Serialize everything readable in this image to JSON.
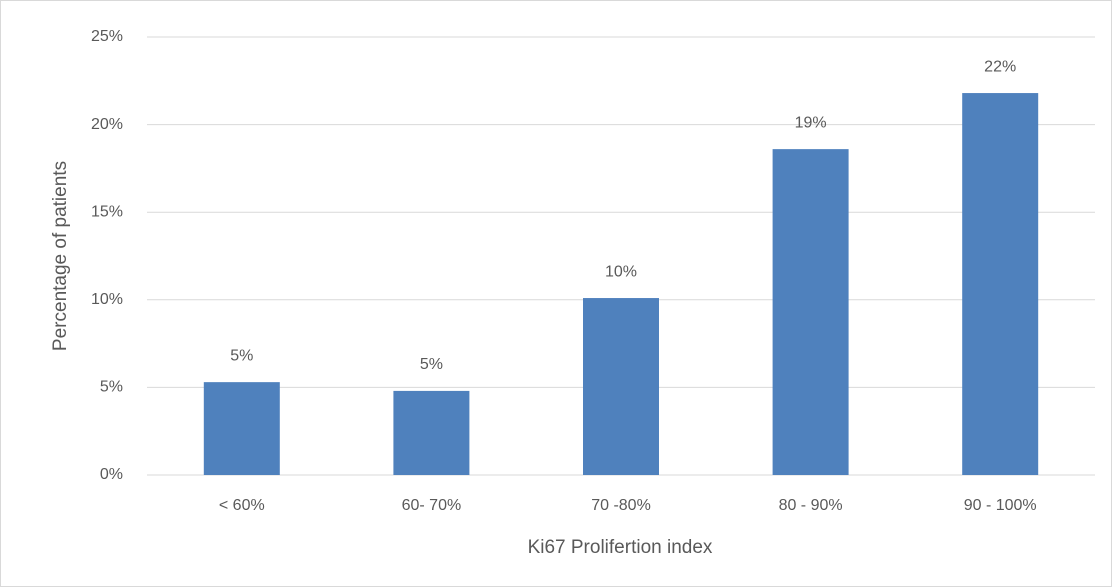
{
  "chart_data": {
    "type": "bar",
    "x_label": "Ki67 Prolifertion index",
    "y_label": "Percentage of patients",
    "categories": [
      "< 60%",
      "60- 70%",
      "70 -80%",
      "80 - 90%",
      "90 - 100%"
    ],
    "values": [
      5.3,
      4.8,
      10.1,
      18.6,
      21.8
    ],
    "value_labels": [
      "5%",
      "5%",
      "10%",
      "19%",
      "22%"
    ],
    "color": "#4f81bd",
    "ylim": [
      0,
      25
    ],
    "yticks": [
      {
        "value": 0,
        "label": "0%"
      },
      {
        "value": 5,
        "label": "5%"
      },
      {
        "value": 10,
        "label": "10%"
      },
      {
        "value": 15,
        "label": "15%"
      },
      {
        "value": 20,
        "label": "20%"
      },
      {
        "value": 25,
        "label": "25%"
      }
    ],
    "grid": true
  }
}
